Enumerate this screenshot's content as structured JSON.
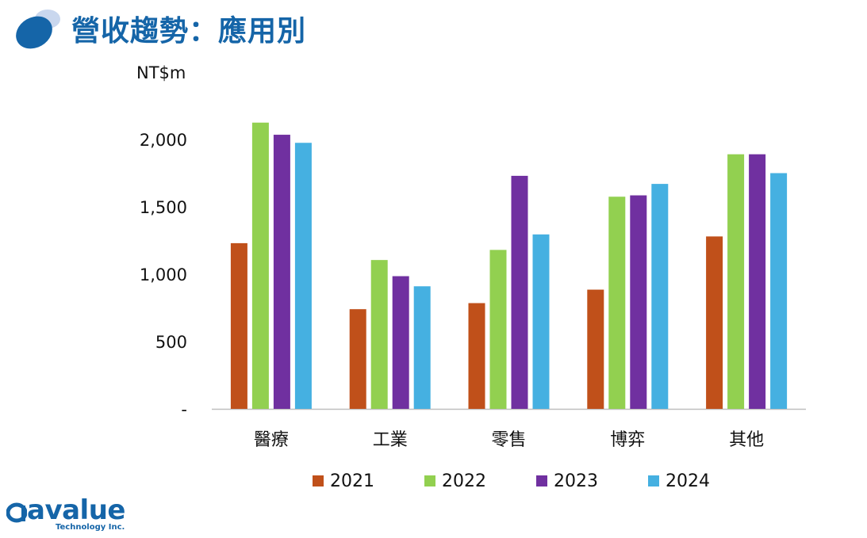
{
  "slide": {
    "title": "營收趨勢：應用別"
  },
  "logo": {
    "wordmark": "avalue",
    "subtext": "Technology Inc."
  },
  "colors": {
    "title": "#1565a8",
    "2021": "#c0501a",
    "2022": "#92d050",
    "2023": "#7030a0",
    "2024": "#45b0e1"
  },
  "chart_data": {
    "type": "bar",
    "unit_label": "NT$m",
    "categories": [
      "醫療",
      "工業",
      "零售",
      "博弈",
      "其他"
    ],
    "series": [
      {
        "name": "2021",
        "color": "#c0501a",
        "values": [
          1230,
          740,
          785,
          885,
          1280
        ]
      },
      {
        "name": "2022",
        "color": "#92d050",
        "values": [
          2125,
          1105,
          1180,
          1575,
          1890
        ]
      },
      {
        "name": "2023",
        "color": "#7030a0",
        "values": [
          2035,
          985,
          1730,
          1585,
          1890
        ]
      },
      {
        "name": "2024",
        "color": "#45b0e1",
        "values": [
          1975,
          910,
          1295,
          1670,
          1750
        ]
      }
    ],
    "y_ticks": [
      {
        "value": 0,
        "label": "-"
      },
      {
        "value": 500,
        "label": "500"
      },
      {
        "value": 1000,
        "label": "1,000"
      },
      {
        "value": 1500,
        "label": "1,500"
      },
      {
        "value": 2000,
        "label": "2,000"
      }
    ],
    "ylim": [
      0,
      2500
    ],
    "grid": false,
    "legend_position": "bottom"
  }
}
